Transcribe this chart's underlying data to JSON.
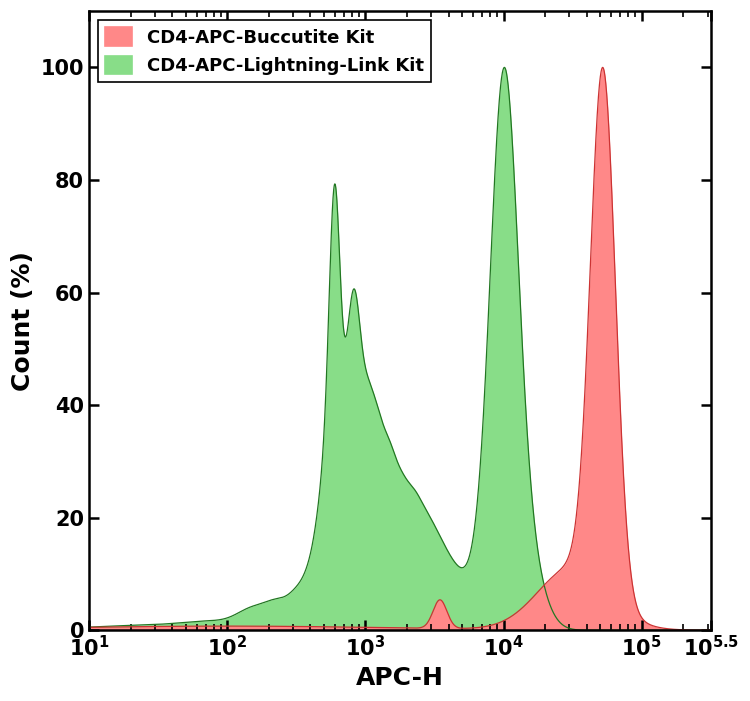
{
  "title": "",
  "xlabel": "APC-H",
  "ylabel": "Count (%)",
  "xlim_log": [
    1.0,
    5.5
  ],
  "ylim": [
    0,
    110
  ],
  "yticks": [
    0,
    20,
    40,
    60,
    80,
    100
  ],
  "xtick_values": [
    10,
    100,
    1000,
    10000,
    100000,
    316227.766
  ],
  "legend_labels": [
    "CD4-APC-Buccutite Kit",
    "CD4-APC-Lightning-Link Kit"
  ],
  "red_fill_color": "#FF8888",
  "red_edge_color": "#CC3333",
  "green_fill_color": "#88DD88",
  "green_edge_color": "#227722",
  "background_color": "#ffffff",
  "label_fontsize": 18,
  "tick_fontsize": 15,
  "legend_fontsize": 13
}
